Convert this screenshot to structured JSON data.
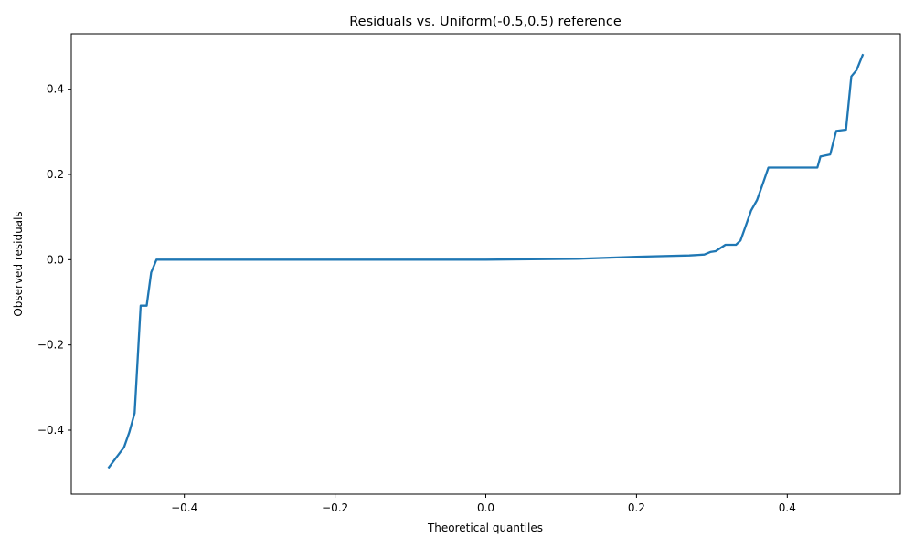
{
  "chart_data": {
    "type": "line",
    "title": "Residuals vs. Uniform(-0.5,0.5) reference",
    "xlabel": "Theoretical quantiles",
    "ylabel": "Observed residuals",
    "xlim": [
      -0.55,
      0.55
    ],
    "ylim": [
      -0.55,
      0.53
    ],
    "xticks": [
      -0.4,
      -0.2,
      0.0,
      0.2,
      0.4
    ],
    "xtick_labels": [
      "−0.4",
      "−0.2",
      "0.0",
      "0.2",
      "0.4"
    ],
    "yticks": [
      -0.4,
      -0.2,
      0.0,
      0.2,
      0.4
    ],
    "ytick_labels": [
      "−0.4",
      "−0.2",
      "0.0",
      "0.2",
      "0.4"
    ],
    "grid": false,
    "color": "#1f77b4",
    "series": [
      {
        "x": [
          -0.5,
          -0.48,
          -0.473,
          -0.466,
          -0.458,
          -0.45,
          -0.444,
          -0.437,
          -0.3,
          -0.1,
          0.0,
          0.12,
          0.2,
          0.27,
          0.29,
          0.298,
          0.305,
          0.318,
          0.332,
          0.338,
          0.345,
          0.352,
          0.36,
          0.368,
          0.375,
          0.44,
          0.444,
          0.457,
          0.465,
          0.478,
          0.485,
          0.492,
          0.5
        ],
        "y": [
          -0.487,
          -0.44,
          -0.405,
          -0.36,
          -0.108,
          -0.108,
          -0.03,
          0.0,
          0.0,
          0.0,
          0.0,
          0.002,
          0.007,
          0.01,
          0.012,
          0.018,
          0.02,
          0.035,
          0.035,
          0.045,
          0.08,
          0.115,
          0.14,
          0.18,
          0.216,
          0.216,
          0.242,
          0.247,
          0.302,
          0.305,
          0.43,
          0.445,
          0.48
        ]
      }
    ]
  }
}
